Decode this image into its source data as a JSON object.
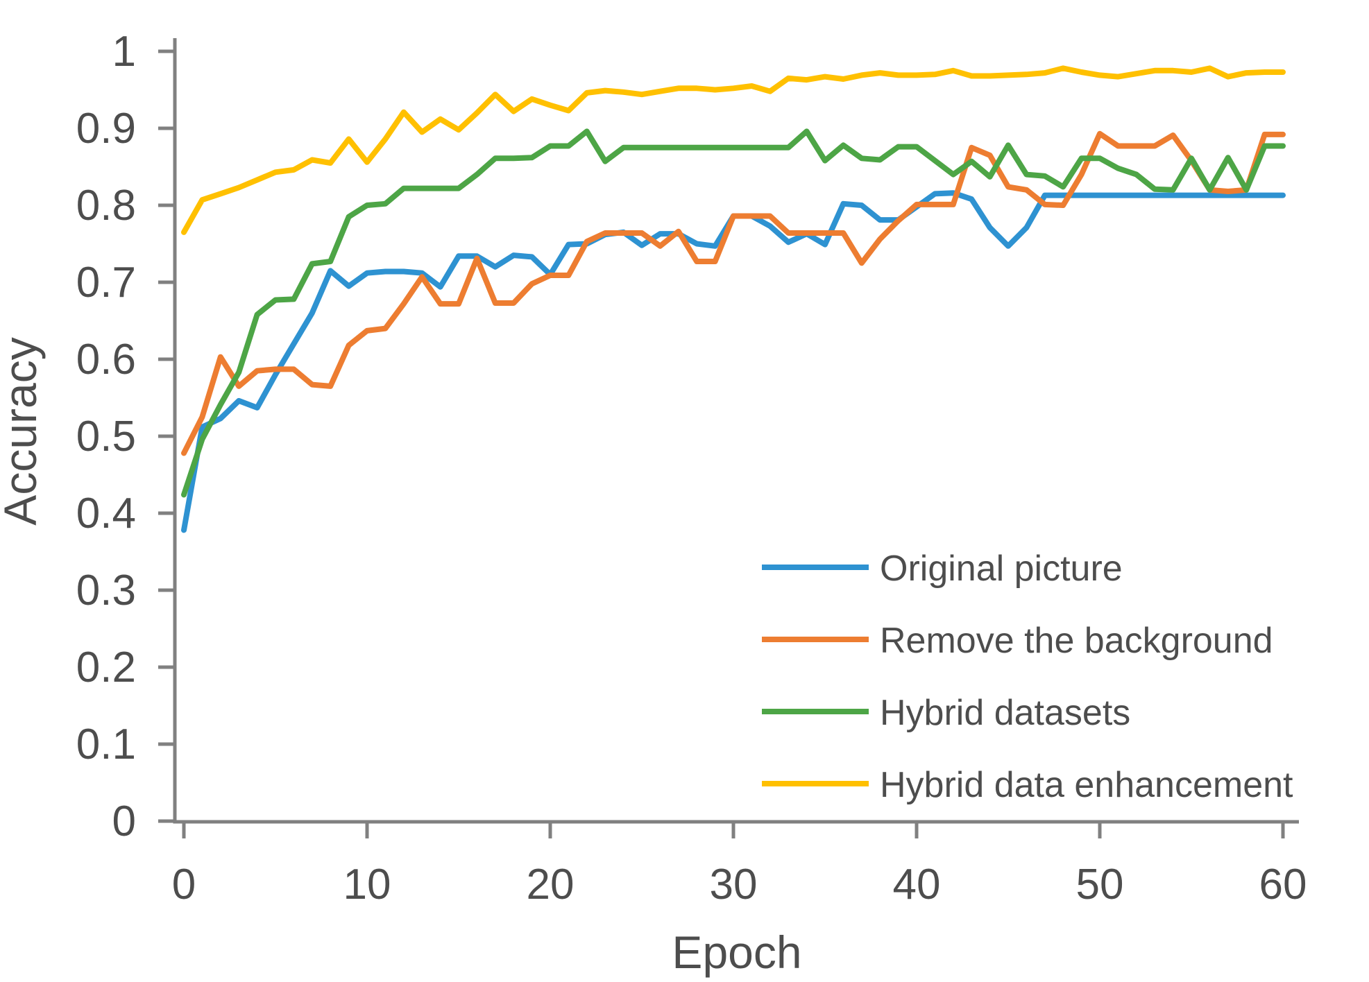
{
  "figure": {
    "background": "#ffffff",
    "axis_line_color": "#808080",
    "tick_label_color": "#4d4d4d"
  },
  "chart_data": {
    "type": "line",
    "title": "",
    "xlabel": "Epoch",
    "ylabel": "Accuracy",
    "xlim": [
      0,
      60
    ],
    "ylim": [
      0,
      1
    ],
    "x_tick_labels": [
      "0",
      "10",
      "20",
      "30",
      "40",
      "50",
      "60"
    ],
    "x_tick_values": [
      0,
      10,
      20,
      30,
      40,
      50,
      60
    ],
    "y_tick_labels": [
      "0",
      "0.1",
      "0.2",
      "0.3",
      "0.4",
      "0.5",
      "0.6",
      "0.7",
      "0.8",
      "0.9",
      "1"
    ],
    "y_tick_values": [
      0,
      0.1,
      0.2,
      0.3,
      0.4,
      0.5,
      0.6,
      0.7,
      0.8,
      0.9,
      1
    ],
    "grid": false,
    "legend_position": "lower right",
    "x_step": 1,
    "x_start": 0,
    "series": [
      {
        "name": "Original picture",
        "color": "#2E92D1",
        "values": [
          0.378,
          0.512,
          0.523,
          0.546,
          0.537,
          0.58,
          0.62,
          0.66,
          0.715,
          0.695,
          0.712,
          0.714,
          0.714,
          0.712,
          0.694,
          0.734,
          0.734,
          0.72,
          0.735,
          0.733,
          0.71,
          0.749,
          0.75,
          0.762,
          0.765,
          0.748,
          0.763,
          0.763,
          0.75,
          0.747,
          0.786,
          0.786,
          0.773,
          0.752,
          0.763,
          0.749,
          0.802,
          0.8,
          0.781,
          0.781,
          0.798,
          0.815,
          0.816,
          0.808,
          0.771,
          0.747,
          0.771,
          0.813,
          0.813,
          0.813,
          0.813,
          0.813,
          0.813,
          0.813,
          0.813,
          0.813,
          0.813,
          0.813,
          0.813,
          0.813,
          0.813
        ]
      },
      {
        "name": "Remove the background",
        "color": "#ED7D31",
        "values": [
          0.478,
          0.525,
          0.603,
          0.565,
          0.585,
          0.587,
          0.587,
          0.567,
          0.565,
          0.618,
          0.637,
          0.64,
          0.672,
          0.707,
          0.672,
          0.672,
          0.731,
          0.673,
          0.673,
          0.698,
          0.709,
          0.709,
          0.753,
          0.764,
          0.764,
          0.764,
          0.747,
          0.766,
          0.727,
          0.727,
          0.786,
          0.786,
          0.786,
          0.764,
          0.764,
          0.764,
          0.764,
          0.725,
          0.756,
          0.78,
          0.801,
          0.801,
          0.801,
          0.875,
          0.865,
          0.824,
          0.82,
          0.801,
          0.8,
          0.84,
          0.893,
          0.877,
          0.877,
          0.877,
          0.891,
          0.858,
          0.82,
          0.818,
          0.82,
          0.892,
          0.892
        ]
      },
      {
        "name": "Hybrid datasets",
        "color": "#4DA546",
        "values": [
          0.424,
          0.496,
          0.541,
          0.583,
          0.658,
          0.677,
          0.678,
          0.724,
          0.727,
          0.785,
          0.8,
          0.802,
          0.822,
          0.822,
          0.822,
          0.822,
          0.84,
          0.861,
          0.861,
          0.862,
          0.877,
          0.877,
          0.896,
          0.857,
          0.875,
          0.875,
          0.875,
          0.875,
          0.875,
          0.875,
          0.875,
          0.875,
          0.875,
          0.875,
          0.896,
          0.858,
          0.878,
          0.861,
          0.859,
          0.876,
          0.876,
          0.858,
          0.84,
          0.857,
          0.837,
          0.878,
          0.84,
          0.838,
          0.824,
          0.861,
          0.861,
          0.848,
          0.84,
          0.821,
          0.82,
          0.861,
          0.82,
          0.862,
          0.82,
          0.877,
          0.877
        ]
      },
      {
        "name": "Hybrid data enhancement",
        "color": "#FFC000",
        "values": [
          0.765,
          0.807,
          0.815,
          0.823,
          0.833,
          0.843,
          0.846,
          0.859,
          0.855,
          0.886,
          0.856,
          0.886,
          0.921,
          0.895,
          0.912,
          0.898,
          0.92,
          0.944,
          0.922,
          0.938,
          0.93,
          0.923,
          0.946,
          0.949,
          0.947,
          0.944,
          0.948,
          0.952,
          0.952,
          0.95,
          0.952,
          0.955,
          0.948,
          0.965,
          0.963,
          0.967,
          0.964,
          0.969,
          0.972,
          0.969,
          0.969,
          0.97,
          0.975,
          0.968,
          0.968,
          0.969,
          0.97,
          0.972,
          0.978,
          0.973,
          0.969,
          0.967,
          0.971,
          0.975,
          0.975,
          0.973,
          0.978,
          0.967,
          0.972,
          0.973,
          0.973
        ]
      }
    ]
  }
}
